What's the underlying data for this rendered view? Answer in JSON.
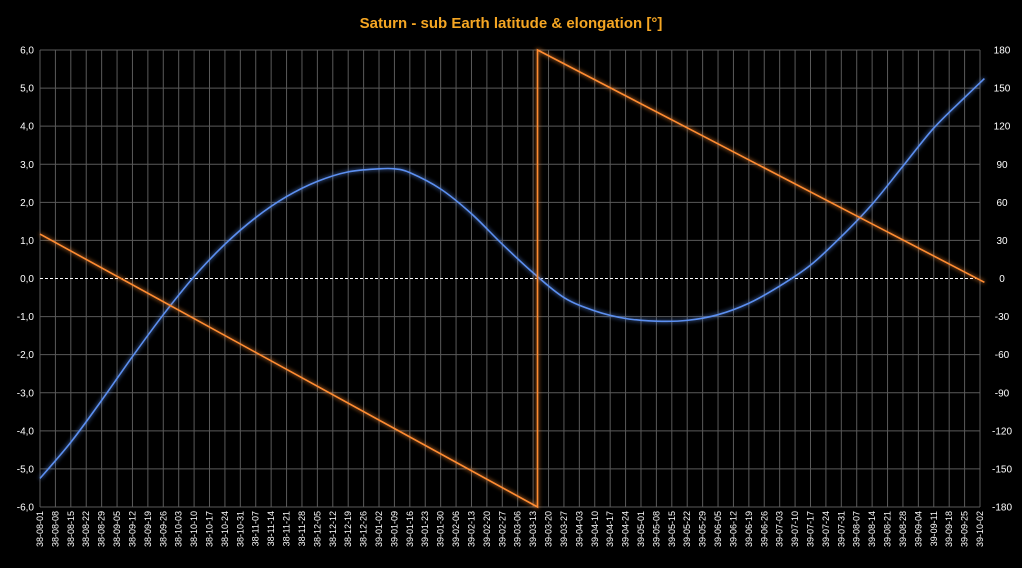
{
  "chart_data": {
    "type": "line",
    "title": "Saturn - sub Earth latitude & elongation [°]",
    "xlabel": "",
    "ylabel": "",
    "y_left_lim": [
      -6,
      6
    ],
    "y_left_ticks": [
      "-6,0",
      "-5,0",
      "-4,0",
      "-3,0",
      "-2,0",
      "-1,0",
      "0,0",
      "1,0",
      "2,0",
      "3,0",
      "4,0",
      "5,0",
      "6,0"
    ],
    "y_right_lim": [
      -180,
      180
    ],
    "y_right_ticks": [
      "-180",
      "-150",
      "-120",
      "-90",
      "-60",
      "-30",
      "0",
      "30",
      "60",
      "90",
      "120",
      "150",
      "180"
    ],
    "x_tick_labels": [
      "38-08-01",
      "38-08-08",
      "38-08-15",
      "38-08-22",
      "38-08-29",
      "38-09-05",
      "38-09-12",
      "38-09-19",
      "38-09-26",
      "38-10-03",
      "38-10-10",
      "38-10-17",
      "38-10-24",
      "38-10-31",
      "38-11-07",
      "38-11-14",
      "38-11-21",
      "38-11-28",
      "38-12-05",
      "38-12-12",
      "38-12-19",
      "38-12-26",
      "39-01-02",
      "39-01-09",
      "39-01-16",
      "39-01-23",
      "39-01-30",
      "39-02-06",
      "39-02-13",
      "39-02-20",
      "39-02-27",
      "39-03-06",
      "39-03-13",
      "39-03-20",
      "39-03-27",
      "39-04-03",
      "39-04-10",
      "39-04-17",
      "39-04-24",
      "39-05-01",
      "39-05-08",
      "39-05-15",
      "39-05-22",
      "39-05-29",
      "39-06-05",
      "39-06-12",
      "39-06-19",
      "39-06-26",
      "39-07-03",
      "39-07-10",
      "39-07-17",
      "39-07-24",
      "39-07-31",
      "39-08-07",
      "39-08-14",
      "39-08-21",
      "39-08-28",
      "39-09-04",
      "39-09-11",
      "39-09-18",
      "39-09-25",
      "39-10-02"
    ],
    "grid": true,
    "colors": {
      "background": "#000000",
      "title": "#f5a623",
      "grid": "#5a5a5a",
      "zero_line": "#ffffff",
      "latitude": "#5b8ff0",
      "elongation": "#ff8c32"
    },
    "series": [
      {
        "axis": "left",
        "x": [
          "38-08-01",
          "38-08-15",
          "38-08-29",
          "38-09-12",
          "38-09-26",
          "38-10-10",
          "38-10-24",
          "38-11-07",
          "38-11-21",
          "38-12-05",
          "38-12-19",
          "39-01-02",
          "39-01-09",
          "39-01-16",
          "39-01-30",
          "39-02-13",
          "39-02-27",
          "39-03-13",
          "39-03-27",
          "39-04-10",
          "39-04-24",
          "39-05-08",
          "39-05-22",
          "39-06-05",
          "39-06-19",
          "39-07-03",
          "39-07-17",
          "39-07-31",
          "39-08-14",
          "39-08-28",
          "39-09-11",
          "39-09-25",
          "39-10-04"
        ],
        "values": [
          -5.25,
          -4.3,
          -3.2,
          -2.05,
          -0.95,
          0.05,
          0.9,
          1.6,
          2.15,
          2.55,
          2.8,
          2.88,
          2.88,
          2.78,
          2.35,
          1.7,
          0.9,
          0.15,
          -0.5,
          -0.85,
          -1.05,
          -1.12,
          -1.1,
          -0.95,
          -0.65,
          -0.2,
          0.35,
          1.1,
          1.95,
          2.95,
          3.95,
          4.75,
          5.25
        ]
      },
      {
        "axis": "right",
        "x": [
          "38-08-01",
          "39-03-15",
          "39-03-15",
          "39-10-04"
        ],
        "values": [
          35,
          -180,
          180,
          -3
        ]
      }
    ]
  }
}
